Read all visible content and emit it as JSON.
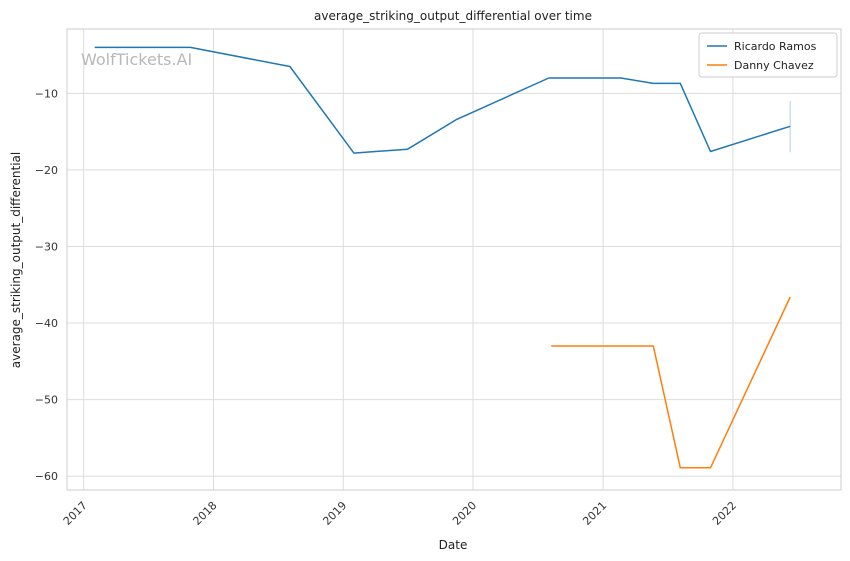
{
  "chart_data": {
    "type": "line",
    "title": "average_striking_output_differential over time",
    "xlabel": "Date",
    "ylabel": "average_striking_output_differential",
    "watermark": "WolfTickets.AI",
    "grid": true,
    "legend_position": "top-right",
    "x_ticks": [
      "2017",
      "2018",
      "2019",
      "2020",
      "2021",
      "2022"
    ],
    "y_ticks": [
      -10,
      -20,
      -30,
      -40,
      -50,
      -60
    ],
    "xlim": [
      "2016-11-15",
      "2022-11-01"
    ],
    "ylim": [
      -61.8,
      -1.6
    ],
    "series": [
      {
        "name": "Ricardo Ramos",
        "color": "#1f77b4",
        "points": [
          [
            "2017-02-01",
            -4.0
          ],
          [
            "2017-10-28",
            -4.0
          ],
          [
            "2018-08-04",
            -6.5
          ],
          [
            "2019-01-31",
            -17.8
          ],
          [
            "2019-07-01",
            -17.3
          ],
          [
            "2019-11-16",
            -13.4
          ],
          [
            "2020-08-01",
            -8.0
          ],
          [
            "2021-02-20",
            -8.0
          ],
          [
            "2021-05-22",
            -8.7
          ],
          [
            "2021-08-06",
            -8.7
          ],
          [
            "2021-10-30",
            -17.6
          ],
          [
            "2022-06-11",
            -14.3
          ]
        ],
        "error_bar": {
          "x": "2022-06-11",
          "low": -17.7,
          "high": -11.0
        }
      },
      {
        "name": "Danny Chavez",
        "color": "#ff7f0e",
        "points": [
          [
            "2020-08-08",
            -43.0
          ],
          [
            "2021-05-22",
            -43.0
          ],
          [
            "2021-08-06",
            -58.9
          ],
          [
            "2021-10-30",
            -58.9
          ],
          [
            "2022-06-11",
            -36.6
          ]
        ]
      }
    ]
  }
}
